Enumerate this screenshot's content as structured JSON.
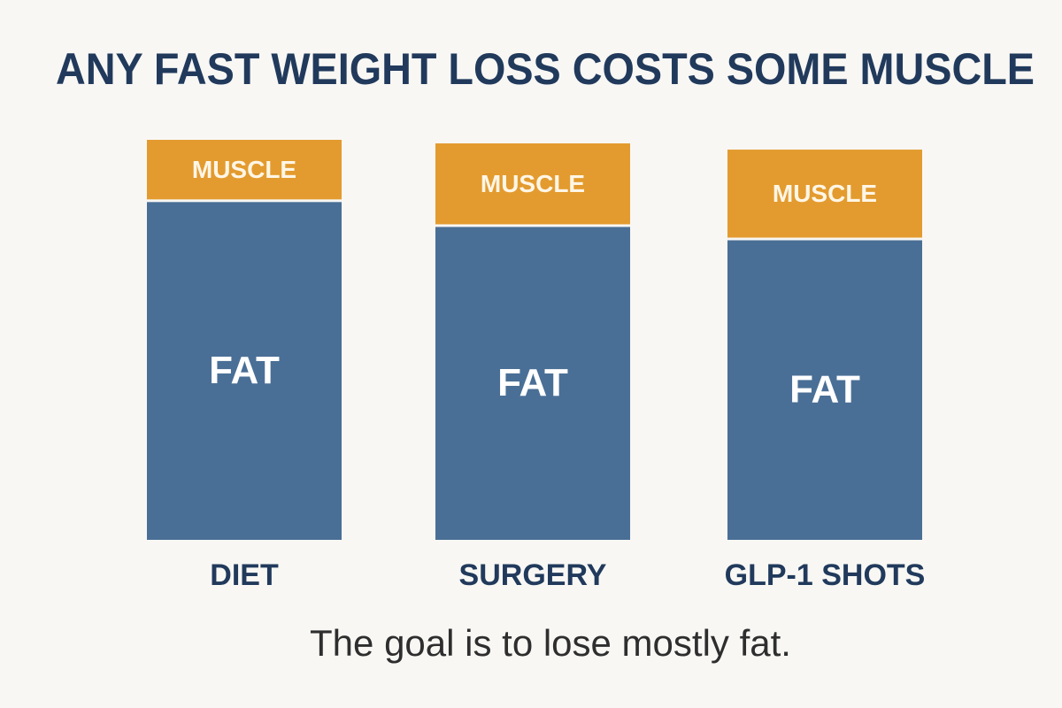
{
  "chart_data": {
    "type": "bar",
    "stacked": true,
    "title": "ANY FAST WEIGHT LOSS COSTS SOME MUSCLE",
    "subtitle": "The goal is to lose mostly fat.",
    "categories": [
      "DIET",
      "SURGERY",
      "GLP-1 SHOTS"
    ],
    "series": [
      {
        "name": "FAT",
        "color": "#4a6f96",
        "values": [
          380,
          352,
          337
        ]
      },
      {
        "name": "MUSCLE",
        "color": "#e39b2f",
        "values": [
          70,
          94,
          102
        ]
      }
    ]
  }
}
